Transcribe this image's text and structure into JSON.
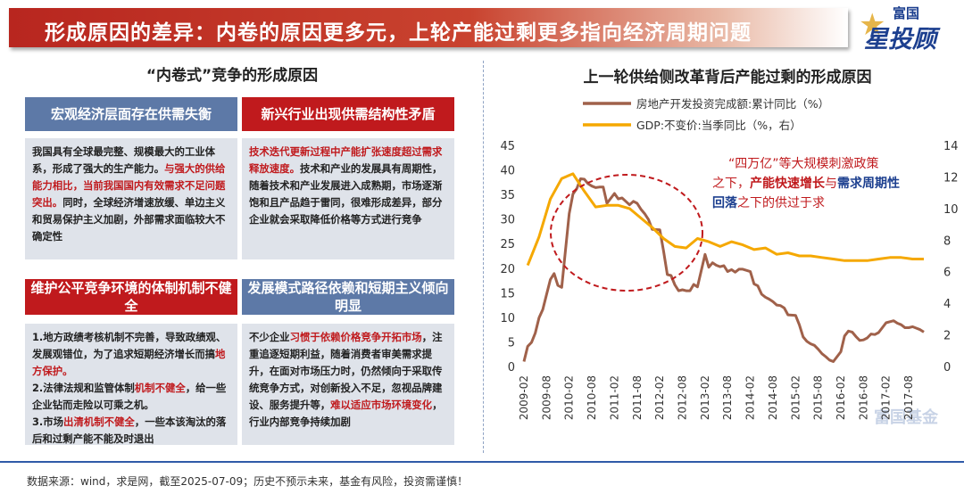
{
  "header": {
    "title": "形成原因的差异：内卷的原因更多元，上轮产能过剩更多指向经济周期问题",
    "logo_small": "富国",
    "logo_big": "星投顾"
  },
  "left": {
    "title": "“内卷式”竞争的形成原因",
    "blocks": [
      {
        "header": "宏观经济层面存在供需失衡",
        "header_style": "blue",
        "segments": [
          {
            "t": "我国具有全球最完整、规模最大的工业体系，形成了强大的生产能力。",
            "h": false
          },
          {
            "t": "与强大的供给能力相比，当前我国国内有效需求不足问题突出。",
            "h": true
          },
          {
            "t": "同时，全球经济增速放缓、单边主义和贸易保护主义加剧，外部需求面临较大不确定性",
            "h": false
          }
        ]
      },
      {
        "header": "新兴行业出现供需结构性矛盾",
        "header_style": "red",
        "segments": [
          {
            "t": "技术迭代更新过程中产能扩张速度超过需求释放速度。",
            "h": true
          },
          {
            "t": "技术和产业的发展具有周期性，随着技术和产业发展进入成熟期，市场逐渐饱和且产品趋于雷同，很难形成差异，部分企业就会采取降低价格等方式进行竞争",
            "h": false
          }
        ]
      },
      {
        "header": "维护公平竞争环境的体制机制不健全",
        "header_style": "red",
        "segments": [
          {
            "t": "1.地方政绩考核机制不完善，导致政绩观、发展观错位，为了追求短期经济增长而搞",
            "h": false
          },
          {
            "t": "地方保护。",
            "h": true
          },
          {
            "t": "\n2.法律法规和监管体制",
            "h": false
          },
          {
            "t": "机制不健全",
            "h": true
          },
          {
            "t": "，给一些企业钻而走险以可乘之机。\n3.市场",
            "h": false
          },
          {
            "t": "出清机制不健全",
            "h": true
          },
          {
            "t": "，一些本该淘汰的落后和过剩产能不能及时退出",
            "h": false
          }
        ]
      },
      {
        "header": "发展模式路径依赖和短期主义倾向明显",
        "header_style": "blue",
        "segments": [
          {
            "t": "不少企业",
            "h": false
          },
          {
            "t": "习惯于依赖价格竞争开拓市场",
            "h": true
          },
          {
            "t": "，注重追逐短期利益，随着消费者审美需求提升，在面对市场压力时，仍然倾向于采取传统竞争方式，对创新投入不足，忽视品牌建设、服务提升等，",
            "h": false
          },
          {
            "t": "难以适应市场环境变化",
            "h": true
          },
          {
            "t": "，行业内部竞争持续加剧",
            "h": false
          }
        ]
      }
    ]
  },
  "chart_data": {
    "type": "line",
    "title": "上一轮供给侧改革背后产能过剩的形成原因",
    "x_ticks": [
      "2009-02",
      "2009-08",
      "2010-02",
      "2010-08",
      "2011-02",
      "2011-08",
      "2012-02",
      "2012-08",
      "2013-02",
      "2013-08",
      "2014-02",
      "2014-08",
      "2015-02",
      "2015-08",
      "2016-02",
      "2016-08",
      "2017-02",
      "2017-08"
    ],
    "y_left": {
      "min": 0,
      "max": 45,
      "step": 5
    },
    "y_right": {
      "min": 0,
      "max": 14,
      "step": 2
    },
    "series": [
      {
        "name": "房地产开发投资完成额:累计同比（%）",
        "axis": "left",
        "color": "#a0614a",
        "x": [
          "2009-02",
          "2009-03",
          "2009-04",
          "2009-05",
          "2009-06",
          "2009-07",
          "2009-08",
          "2009-09",
          "2009-10",
          "2009-11",
          "2009-12",
          "2010-02",
          "2010-03",
          "2010-04",
          "2010-05",
          "2010-06",
          "2010-07",
          "2010-08",
          "2010-09",
          "2010-10",
          "2010-11",
          "2010-12",
          "2011-02",
          "2011-03",
          "2011-04",
          "2011-05",
          "2011-06",
          "2011-07",
          "2011-08",
          "2011-09",
          "2011-10",
          "2011-11",
          "2011-12",
          "2012-02",
          "2012-03",
          "2012-04",
          "2012-05",
          "2012-06",
          "2012-07",
          "2012-08",
          "2012-09",
          "2012-10",
          "2012-11",
          "2012-12",
          "2013-02",
          "2013-03",
          "2013-04",
          "2013-05",
          "2013-06",
          "2013-07",
          "2013-08",
          "2013-09",
          "2013-10",
          "2013-11",
          "2013-12",
          "2014-02",
          "2014-03",
          "2014-04",
          "2014-05",
          "2014-06",
          "2014-07",
          "2014-08",
          "2014-09",
          "2014-10",
          "2014-11",
          "2014-12",
          "2015-02",
          "2015-03",
          "2015-04",
          "2015-05",
          "2015-06",
          "2015-07",
          "2015-08",
          "2015-09",
          "2015-10",
          "2015-11",
          "2015-12",
          "2016-02",
          "2016-03",
          "2016-04",
          "2016-05",
          "2016-06",
          "2016-07",
          "2016-08",
          "2016-09",
          "2016-10",
          "2016-11",
          "2016-12",
          "2017-02",
          "2017-03",
          "2017-04",
          "2017-05",
          "2017-06",
          "2017-07",
          "2017-08",
          "2017-09",
          "2017-10",
          "2017-11",
          "2017-12"
        ],
        "values": [
          1.0,
          4.1,
          4.9,
          6.8,
          9.9,
          11.6,
          14.7,
          17.7,
          18.9,
          16.5,
          16.1,
          31.1,
          35.1,
          36.2,
          38.2,
          38.1,
          37.2,
          36.7,
          36.4,
          36.5,
          36.5,
          33.2,
          35.2,
          34.1,
          34.3,
          33.6,
          32.9,
          33.6,
          33.2,
          32.0,
          31.1,
          29.9,
          27.9,
          27.8,
          23.5,
          18.7,
          18.5,
          16.6,
          15.4,
          15.6,
          15.4,
          15.4,
          16.7,
          16.2,
          22.8,
          20.2,
          21.1,
          20.6,
          20.3,
          20.5,
          19.3,
          19.7,
          19.2,
          19.8,
          19.8,
          19.3,
          16.8,
          16.4,
          14.7,
          14.1,
          13.7,
          13.2,
          12.5,
          12.4,
          11.9,
          10.5,
          10.4,
          8.5,
          6.0,
          5.1,
          4.6,
          4.3,
          3.5,
          2.6,
          2.0,
          1.3,
          1.0,
          3.0,
          6.2,
          7.2,
          7.0,
          6.1,
          5.3,
          5.4,
          5.8,
          6.6,
          6.5,
          6.9,
          8.9,
          9.1,
          9.3,
          8.8,
          8.5,
          7.9,
          7.9,
          8.1,
          7.8,
          7.5,
          7.0
        ]
      },
      {
        "name": "GDP:不变价:当季同比（%，右）",
        "axis": "right",
        "color": "#f5a800",
        "x": [
          "2009-03",
          "2009-06",
          "2009-09",
          "2009-12",
          "2010-03",
          "2010-06",
          "2010-09",
          "2010-12",
          "2011-03",
          "2011-06",
          "2011-09",
          "2011-12",
          "2012-03",
          "2012-06",
          "2012-09",
          "2012-12",
          "2013-03",
          "2013-06",
          "2013-09",
          "2013-12",
          "2014-03",
          "2014-06",
          "2014-09",
          "2014-12",
          "2015-03",
          "2015-06",
          "2015-09",
          "2015-12",
          "2016-03",
          "2016-06",
          "2016-09",
          "2016-12",
          "2017-03",
          "2017-06",
          "2017-09",
          "2017-12"
        ],
        "values": [
          6.4,
          8.2,
          10.6,
          11.9,
          12.2,
          11.1,
          10.1,
          10.2,
          10.2,
          10.0,
          9.4,
          8.8,
          8.1,
          7.6,
          7.5,
          8.1,
          7.9,
          7.6,
          7.9,
          7.7,
          7.4,
          7.5,
          7.1,
          7.2,
          7.0,
          7.0,
          6.9,
          6.8,
          6.7,
          6.7,
          6.7,
          6.8,
          6.9,
          6.9,
          6.8,
          6.8
        ]
      }
    ],
    "annotation": {
      "parts": [
        {
          "t": "“四万亿”等大规模刺激政策之下，",
          "c": "#c01a1d",
          "b": false
        },
        {
          "t": "产能快速增长",
          "c": "#c01a1d",
          "b": true
        },
        {
          "t": "与",
          "c": "#c01a1d",
          "b": false
        },
        {
          "t": "需求周期性回落",
          "c": "#1c3f8f",
          "b": true
        },
        {
          "t": "之下的供过于求",
          "c": "#c01a1d",
          "b": false
        }
      ]
    },
    "watermark": "富国基金"
  },
  "footer": {
    "source": "数据来源：wind，求是网，截至2025-07-09；历史不预示未来，基金有风险，投资需谨慎！"
  }
}
